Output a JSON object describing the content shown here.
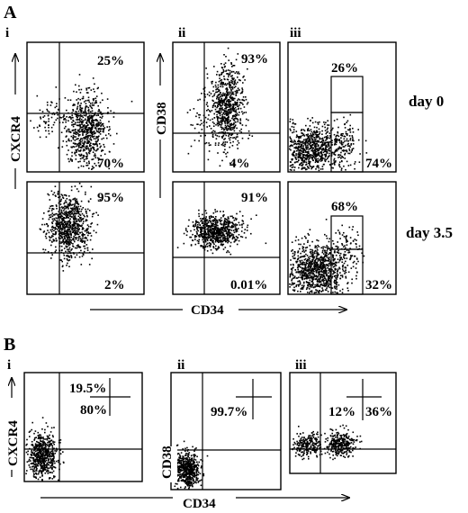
{
  "panel_A": {
    "label": "A",
    "row_labels": {
      "day_0": "day 0",
      "day_35": "day 3.5"
    },
    "axis_labels": {
      "cxcr4": "CXCR4",
      "cd38": "CD38",
      "cd34": "CD34"
    },
    "subpanels": [
      {
        "id": "i",
        "label": "i",
        "top_pct": "25%",
        "bottom_pct": "70%",
        "bottom_left_pct": ""
      },
      {
        "id": "ii",
        "label": "ii",
        "top_pct": "93%",
        "bottom_pct": "4%",
        "bottom_left_pct": ""
      },
      {
        "id": "iii",
        "label": "iii",
        "top_pct": "26%",
        "bottom_pct": "74%",
        "bottom_left_pct": ""
      }
    ],
    "day35": [
      {
        "id": "i",
        "top_pct": "95%",
        "bottom_pct": "2%"
      },
      {
        "id": "ii",
        "top_pct": "91%",
        "bottom_pct": "0.01%"
      },
      {
        "id": "iii",
        "top_pct": "68%",
        "bottom_pct": "32%"
      }
    ]
  },
  "panel_B": {
    "label": "B",
    "axis_labels": {
      "cxcr4": "CXCR4",
      "cd38": "CD38",
      "cd34": "CD34"
    },
    "subpanels": [
      {
        "id": "i",
        "label": "i",
        "top_pct": "19.5%",
        "bottom_pct": "80%"
      },
      {
        "id": "ii",
        "label": "ii",
        "single_pct": "99.7%"
      },
      {
        "id": "iii",
        "label": "iii",
        "left_pct": "12%",
        "right_pct": "36%"
      }
    ]
  }
}
